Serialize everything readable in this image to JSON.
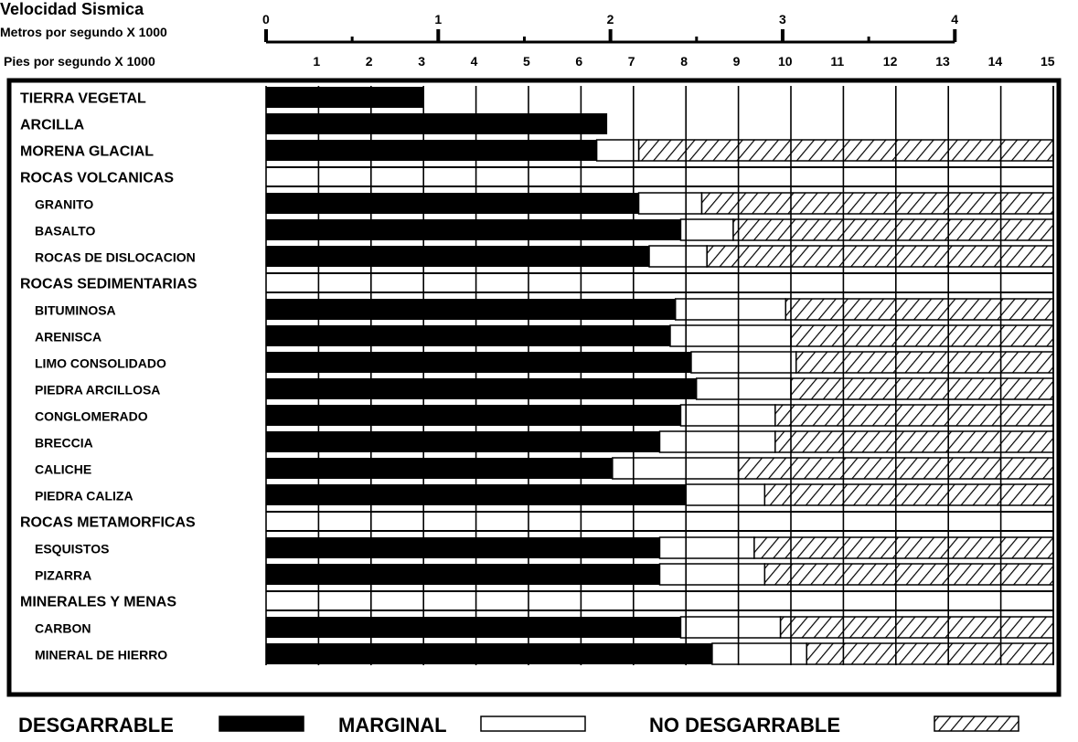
{
  "chart_data": {
    "type": "bar",
    "orientation": "horizontal-stacked",
    "title": "Velocidad Sismica",
    "axis_top_label": "Metros por segundo X 1000",
    "axis_top_ticks": [
      "0",
      "1",
      "2",
      "3",
      "4"
    ],
    "axis_top_range": [
      0,
      4
    ],
    "axis_bottom_label": "Pies por segundo X 1000",
    "axis_bottom_ticks": [
      "1",
      "2",
      "3",
      "4",
      "5",
      "6",
      "7",
      "8",
      "9",
      "10",
      "11",
      "12",
      "13",
      "14",
      "15"
    ],
    "axis_bottom_range": [
      0,
      15
    ],
    "legend": {
      "placement": "bottom",
      "items": [
        {
          "key": "desgarrable",
          "label": "DESGARRABLE",
          "fill": "#000000"
        },
        {
          "key": "marginal",
          "label": "MARGINAL",
          "fill": "#ffffff"
        },
        {
          "key": "no_desgarrable",
          "label": "NO DESGARRABLE",
          "fill": "hatch"
        }
      ]
    },
    "rows": [
      {
        "label": "TIERRA VEGETAL",
        "kind": "material",
        "indent": 0,
        "desgarrable": 3.0,
        "marginal": 3.0,
        "no_desgarrable": 3.0
      },
      {
        "label": "ARCILLA",
        "kind": "material",
        "indent": 0,
        "desgarrable": 6.5,
        "marginal": 6.5,
        "no_desgarrable": 6.5
      },
      {
        "label": "MORENA GLACIAL",
        "kind": "material",
        "indent": 0,
        "desgarrable": 6.3,
        "marginal": 7.1,
        "no_desgarrable": 15
      },
      {
        "label": "ROCAS VOLCANICAS",
        "kind": "header",
        "indent": 0
      },
      {
        "label": "GRANITO",
        "kind": "material",
        "indent": 1,
        "desgarrable": 7.1,
        "marginal": 8.3,
        "no_desgarrable": 15
      },
      {
        "label": "BASALTO",
        "kind": "material",
        "indent": 1,
        "desgarrable": 7.9,
        "marginal": 8.9,
        "no_desgarrable": 15
      },
      {
        "label": "ROCAS DE DISLOCACION",
        "kind": "material",
        "indent": 1,
        "desgarrable": 7.3,
        "marginal": 8.4,
        "no_desgarrable": 15
      },
      {
        "label": "ROCAS SEDIMENTARIAS",
        "kind": "header",
        "indent": 0
      },
      {
        "label": "BITUMINOSA",
        "kind": "material",
        "indent": 1,
        "desgarrable": 7.8,
        "marginal": 9.9,
        "no_desgarrable": 15
      },
      {
        "label": "ARENISCA",
        "kind": "material",
        "indent": 1,
        "desgarrable": 7.7,
        "marginal": 10.0,
        "no_desgarrable": 15
      },
      {
        "label": "LIMO CONSOLIDADO",
        "kind": "material",
        "indent": 1,
        "desgarrable": 8.1,
        "marginal": 10.1,
        "no_desgarrable": 15
      },
      {
        "label": "PIEDRA ARCILLOSA",
        "kind": "material",
        "indent": 1,
        "desgarrable": 8.2,
        "marginal": 10.0,
        "no_desgarrable": 15
      },
      {
        "label": "CONGLOMERADO",
        "kind": "material",
        "indent": 1,
        "desgarrable": 7.9,
        "marginal": 9.7,
        "no_desgarrable": 15
      },
      {
        "label": "BRECCIA",
        "kind": "material",
        "indent": 1,
        "desgarrable": 7.5,
        "marginal": 9.7,
        "no_desgarrable": 15
      },
      {
        "label": "CALICHE",
        "kind": "material",
        "indent": 1,
        "desgarrable": 6.6,
        "marginal": 9.0,
        "no_desgarrable": 15
      },
      {
        "label": "PIEDRA CALIZA",
        "kind": "material",
        "indent": 1,
        "desgarrable": 8.0,
        "marginal": 9.5,
        "no_desgarrable": 15
      },
      {
        "label": "ROCAS METAMORFICAS",
        "kind": "header",
        "indent": 0
      },
      {
        "label": "ESQUISTOS",
        "kind": "material",
        "indent": 1,
        "desgarrable": 7.5,
        "marginal": 9.3,
        "no_desgarrable": 15
      },
      {
        "label": "PIZARRA",
        "kind": "material",
        "indent": 1,
        "desgarrable": 7.5,
        "marginal": 9.5,
        "no_desgarrable": 15
      },
      {
        "label": "MINERALES Y MENAS",
        "kind": "header",
        "indent": 0
      },
      {
        "label": "CARBON",
        "kind": "material",
        "indent": 1,
        "desgarrable": 7.9,
        "marginal": 9.8,
        "no_desgarrable": 15
      },
      {
        "label": "MINERAL DE HIERRO",
        "kind": "material",
        "indent": 1,
        "desgarrable": 8.5,
        "marginal": 10.3,
        "no_desgarrable": 15
      }
    ]
  }
}
